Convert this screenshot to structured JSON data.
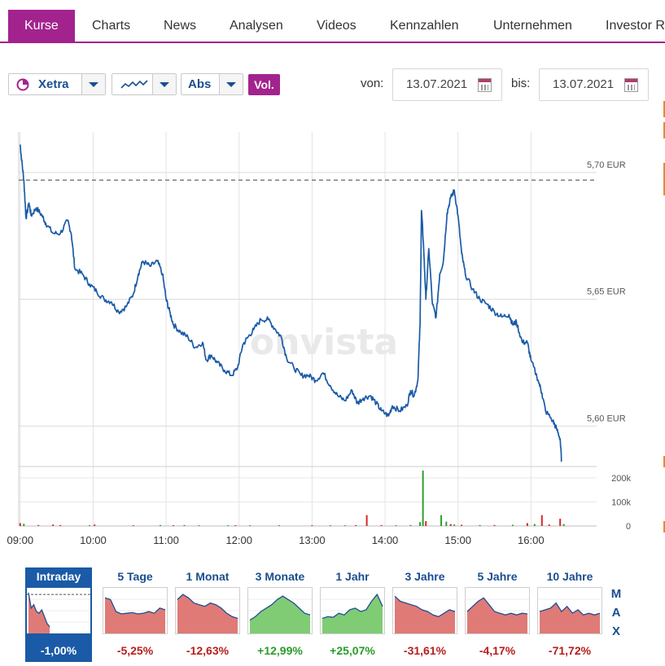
{
  "tabs": [
    {
      "label": "Kurse",
      "active": true
    },
    {
      "label": "Charts",
      "active": false
    },
    {
      "label": "News",
      "active": false
    },
    {
      "label": "Analysen",
      "active": false
    },
    {
      "label": "Videos",
      "active": false
    },
    {
      "label": "Kennzahlen",
      "active": false
    },
    {
      "label": "Unternehmen",
      "active": false
    },
    {
      "label": "Investor R",
      "active": false
    }
  ],
  "toolbar": {
    "exchange": "Xetra",
    "chart_type_icon": "line-chart-icon",
    "scale": "Abs",
    "volume_label": "Vol.",
    "from_label": "von:",
    "from_date": "13.07.2021",
    "to_label": "bis:",
    "to_date": "13.07.2021"
  },
  "watermark": "onvista",
  "colors": {
    "accent": "#a3238e",
    "line": "#1a5aa6",
    "volume_up": "#2ca02c",
    "volume_down": "#d62728",
    "positive": "#2a9a2a",
    "negative": "#b81d1d",
    "area_negative": "#e07a76",
    "area_positive": "#7fcc74"
  },
  "chart_data": {
    "type": "line",
    "title": "",
    "x_ticks": [
      "09:00",
      "10:00",
      "11:00",
      "12:00",
      "13:00",
      "14:00",
      "15:00",
      "16:00"
    ],
    "y_ticks": [
      {
        "value": 5.7,
        "label": "5,70 EUR"
      },
      {
        "value": 5.65,
        "label": "5,65 EUR"
      },
      {
        "value": 5.6,
        "label": "5,60 EUR"
      }
    ],
    "ylim": [
      5.585,
      5.716
    ],
    "xlim_hours": [
      8.98,
      16.9
    ],
    "reference_close": 5.697,
    "series": [
      {
        "name": "Xetra",
        "points": [
          [
            9.0,
            5.711
          ],
          [
            9.02,
            5.705
          ],
          [
            9.05,
            5.697
          ],
          [
            9.08,
            5.682
          ],
          [
            9.12,
            5.688
          ],
          [
            9.15,
            5.683
          ],
          [
            9.22,
            5.686
          ],
          [
            9.3,
            5.683
          ],
          [
            9.35,
            5.68
          ],
          [
            9.45,
            5.676
          ],
          [
            9.55,
            5.676
          ],
          [
            9.65,
            5.681
          ],
          [
            9.7,
            5.676
          ],
          [
            9.75,
            5.662
          ],
          [
            9.85,
            5.66
          ],
          [
            9.95,
            5.656
          ],
          [
            10.05,
            5.653
          ],
          [
            10.15,
            5.65
          ],
          [
            10.25,
            5.649
          ],
          [
            10.35,
            5.645
          ],
          [
            10.45,
            5.647
          ],
          [
            10.55,
            5.652
          ],
          [
            10.62,
            5.66
          ],
          [
            10.68,
            5.665
          ],
          [
            10.78,
            5.663
          ],
          [
            10.88,
            5.665
          ],
          [
            10.95,
            5.66
          ],
          [
            11.0,
            5.65
          ],
          [
            11.05,
            5.645
          ],
          [
            11.1,
            5.64
          ],
          [
            11.2,
            5.637
          ],
          [
            11.3,
            5.635
          ],
          [
            11.4,
            5.631
          ],
          [
            11.5,
            5.633
          ],
          [
            11.55,
            5.626
          ],
          [
            11.62,
            5.628
          ],
          [
            11.7,
            5.625
          ],
          [
            11.8,
            5.622
          ],
          [
            11.9,
            5.62
          ],
          [
            11.98,
            5.623
          ],
          [
            12.05,
            5.632
          ],
          [
            12.12,
            5.635
          ],
          [
            12.2,
            5.638
          ],
          [
            12.3,
            5.642
          ],
          [
            12.4,
            5.642
          ],
          [
            12.5,
            5.638
          ],
          [
            12.58,
            5.635
          ],
          [
            12.65,
            5.627
          ],
          [
            12.75,
            5.623
          ],
          [
            12.85,
            5.62
          ],
          [
            12.95,
            5.62
          ],
          [
            13.05,
            5.618
          ],
          [
            13.15,
            5.621
          ],
          [
            13.25,
            5.616
          ],
          [
            13.35,
            5.612
          ],
          [
            13.45,
            5.61
          ],
          [
            13.55,
            5.614
          ],
          [
            13.62,
            5.609
          ],
          [
            13.7,
            5.611
          ],
          [
            13.8,
            5.612
          ],
          [
            13.88,
            5.609
          ],
          [
            13.95,
            5.606
          ],
          [
            14.05,
            5.604
          ],
          [
            14.1,
            5.608
          ],
          [
            14.2,
            5.606
          ],
          [
            14.3,
            5.608
          ],
          [
            14.35,
            5.614
          ],
          [
            14.4,
            5.612
          ],
          [
            14.45,
            5.618
          ],
          [
            14.48,
            5.64
          ],
          [
            14.5,
            5.685
          ],
          [
            14.53,
            5.67
          ],
          [
            14.56,
            5.65
          ],
          [
            14.6,
            5.67
          ],
          [
            14.65,
            5.648
          ],
          [
            14.7,
            5.643
          ],
          [
            14.75,
            5.66
          ],
          [
            14.8,
            5.665
          ],
          [
            14.85,
            5.684
          ],
          [
            14.9,
            5.69
          ],
          [
            14.95,
            5.693
          ],
          [
            15.0,
            5.683
          ],
          [
            15.05,
            5.668
          ],
          [
            15.1,
            5.66
          ],
          [
            15.2,
            5.654
          ],
          [
            15.3,
            5.65
          ],
          [
            15.4,
            5.648
          ],
          [
            15.5,
            5.645
          ],
          [
            15.6,
            5.643
          ],
          [
            15.7,
            5.644
          ],
          [
            15.75,
            5.64
          ],
          [
            15.8,
            5.641
          ],
          [
            15.88,
            5.633
          ],
          [
            15.95,
            5.633
          ],
          [
            16.0,
            5.626
          ],
          [
            16.1,
            5.618
          ],
          [
            16.15,
            5.613
          ],
          [
            16.2,
            5.606
          ],
          [
            16.3,
            5.602
          ],
          [
            16.35,
            5.599
          ],
          [
            16.4,
            5.595
          ],
          [
            16.42,
            5.586
          ]
        ]
      }
    ],
    "volume": {
      "y_ticks": [
        {
          "value": 200000,
          "label": "200k"
        },
        {
          "value": 100000,
          "label": "100k"
        },
        {
          "value": 0,
          "label": "0"
        }
      ],
      "ymax": 240000,
      "bars": [
        [
          9.0,
          12000,
          "down"
        ],
        [
          9.05,
          9000,
          "up"
        ],
        [
          9.25,
          4000,
          "down"
        ],
        [
          9.45,
          6000,
          "down"
        ],
        [
          9.55,
          4000,
          "down"
        ],
        [
          9.95,
          3000,
          "up"
        ],
        [
          10.02,
          6000,
          "down"
        ],
        [
          10.55,
          3000,
          "down"
        ],
        [
          10.92,
          4000,
          "up"
        ],
        [
          11.1,
          3000,
          "down"
        ],
        [
          11.25,
          4000,
          "up"
        ],
        [
          11.45,
          3000,
          "up"
        ],
        [
          11.85,
          3000,
          "up"
        ],
        [
          11.95,
          3000,
          "down"
        ],
        [
          12.15,
          3000,
          "up"
        ],
        [
          12.55,
          3000,
          "up"
        ],
        [
          13.0,
          3000,
          "down"
        ],
        [
          13.25,
          3000,
          "up"
        ],
        [
          13.45,
          3000,
          "up"
        ],
        [
          13.6,
          4000,
          "down"
        ],
        [
          13.75,
          45000,
          "down"
        ],
        [
          13.95,
          4000,
          "down"
        ],
        [
          14.15,
          3000,
          "up"
        ],
        [
          14.35,
          4000,
          "up"
        ],
        [
          14.48,
          16000,
          "up"
        ],
        [
          14.52,
          230000,
          "up"
        ],
        [
          14.56,
          20000,
          "down"
        ],
        [
          14.77,
          45000,
          "up"
        ],
        [
          14.84,
          18000,
          "up"
        ],
        [
          14.9,
          8000,
          "down"
        ],
        [
          14.95,
          6000,
          "up"
        ],
        [
          15.05,
          5000,
          "down"
        ],
        [
          15.3,
          4000,
          "up"
        ],
        [
          15.5,
          4000,
          "down"
        ],
        [
          15.75,
          5000,
          "up"
        ],
        [
          15.95,
          12000,
          "down"
        ],
        [
          16.05,
          8000,
          "up"
        ],
        [
          16.15,
          45000,
          "down"
        ],
        [
          16.25,
          6000,
          "down"
        ],
        [
          16.4,
          30000,
          "down"
        ],
        [
          16.45,
          8000,
          "up"
        ]
      ]
    }
  },
  "periods": [
    {
      "label": "Intraday",
      "change": "-1,00%",
      "trend": "down",
      "active": true,
      "spark": [
        0.0,
        0.45,
        0.35,
        0.55,
        0.6,
        0.5,
        0.7,
        0.9,
        1.0
      ],
      "reference": 0.05
    },
    {
      "label": "5 Tage",
      "change": "-5,25%",
      "trend": "down",
      "active": false,
      "spark": [
        0.15,
        0.2,
        0.55,
        0.62,
        0.6,
        0.58,
        0.62,
        0.6,
        0.55,
        0.6,
        0.45,
        0.5
      ]
    },
    {
      "label": "1 Monat",
      "change": "-12,63%",
      "trend": "down",
      "active": false,
      "spark": [
        0.2,
        0.05,
        0.15,
        0.3,
        0.35,
        0.4,
        0.3,
        0.35,
        0.45,
        0.6,
        0.7,
        0.75
      ]
    },
    {
      "label": "3 Monate",
      "change": "+12,99%",
      "trend": "up",
      "active": false,
      "spark": [
        0.8,
        0.7,
        0.55,
        0.45,
        0.35,
        0.2,
        0.1,
        0.2,
        0.3,
        0.45,
        0.6,
        0.65
      ]
    },
    {
      "label": "1 Jahr",
      "change": "+25,07%",
      "trend": "up",
      "active": false,
      "spark": [
        0.75,
        0.7,
        0.72,
        0.6,
        0.65,
        0.5,
        0.45,
        0.55,
        0.5,
        0.25,
        0.05,
        0.4
      ]
    },
    {
      "label": "3 Jahre",
      "change": "-31,61%",
      "trend": "down",
      "active": false,
      "spark": [
        0.1,
        0.25,
        0.3,
        0.35,
        0.4,
        0.5,
        0.55,
        0.65,
        0.7,
        0.6,
        0.5,
        0.55
      ]
    },
    {
      "label": "5 Jahre",
      "change": "-4,17%",
      "trend": "down",
      "active": false,
      "spark": [
        0.55,
        0.4,
        0.25,
        0.15,
        0.35,
        0.55,
        0.6,
        0.65,
        0.6,
        0.65,
        0.6,
        0.62
      ]
    },
    {
      "label": "10 Jahre",
      "change": "-71,72%",
      "trend": "down",
      "active": false,
      "spark": [
        0.55,
        0.5,
        0.45,
        0.3,
        0.55,
        0.4,
        0.6,
        0.5,
        0.65,
        0.6,
        0.65,
        0.6
      ]
    }
  ],
  "max_label": "M A X"
}
